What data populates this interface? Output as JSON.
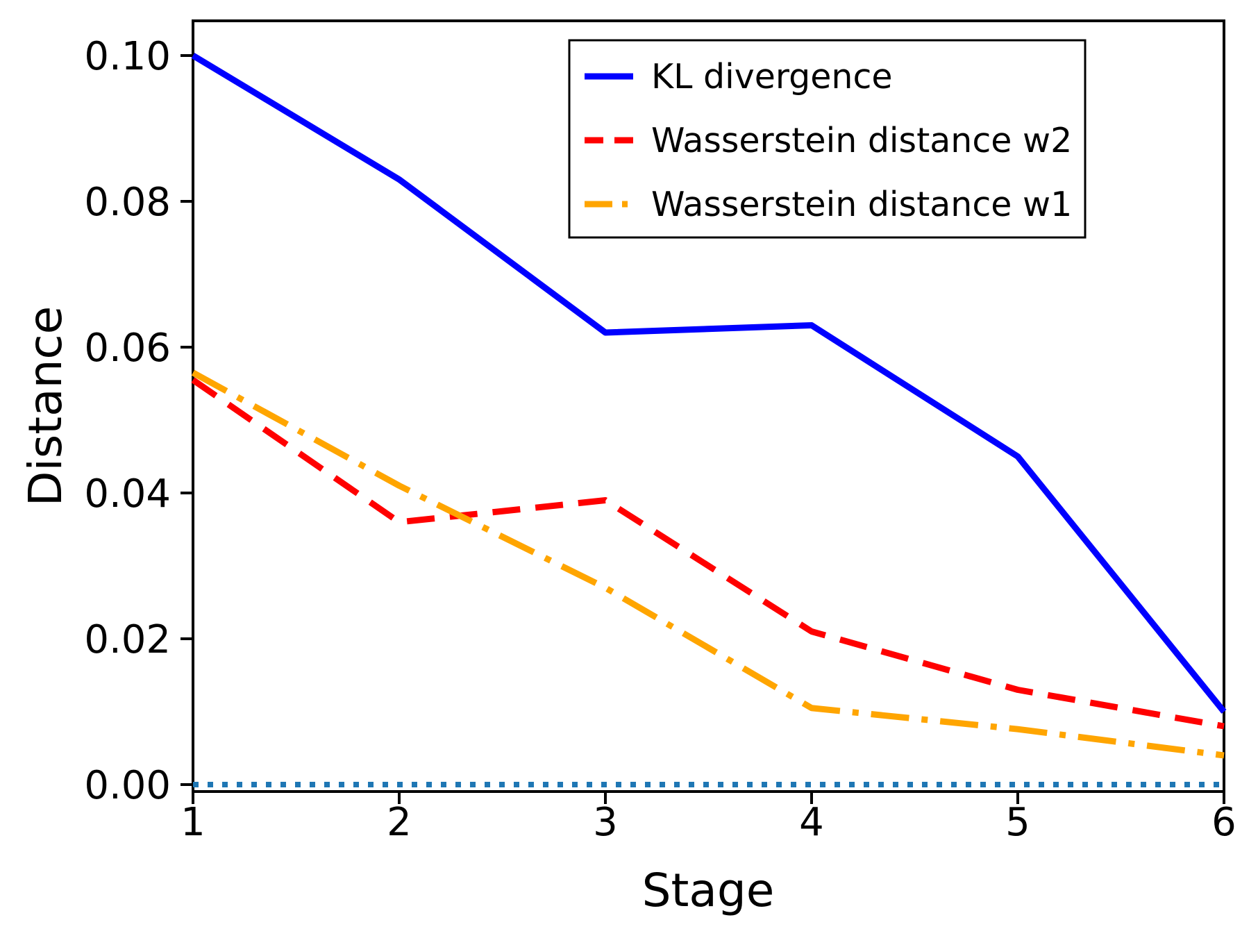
{
  "chart_data": {
    "type": "line",
    "title": "",
    "xlabel": "Stage",
    "ylabel": "Distance",
    "x": [
      1,
      2,
      3,
      4,
      5,
      6
    ],
    "series": [
      {
        "id": "kl-divergence",
        "name": "KL divergence",
        "color": "#0000ff",
        "style": "solid",
        "values": [
          0.1,
          0.083,
          0.062,
          0.063,
          0.045,
          0.01
        ]
      },
      {
        "id": "wasserstein-w2",
        "name": "Wasserstein distance w2",
        "color": "#ff0000",
        "style": "dashed",
        "values": [
          0.0555,
          0.036,
          0.039,
          0.021,
          0.013,
          0.008
        ]
      },
      {
        "id": "wasserstein-w1",
        "name": "Wasserstein distance w1",
        "color": "#ffa500",
        "style": "dashdot",
        "values": [
          0.0565,
          0.041,
          0.027,
          0.0105,
          0.0076,
          0.004
        ]
      }
    ],
    "reference_line": {
      "id": "zero-line",
      "y": 0.0,
      "color": "#1f77b4",
      "style": "dotted"
    },
    "xticks": {
      "values": [
        1,
        2,
        3,
        4,
        5,
        6
      ],
      "labels": [
        "1",
        "2",
        "3",
        "4",
        "5",
        "6"
      ]
    },
    "yticks": {
      "values": [
        0.0,
        0.02,
        0.04,
        0.06,
        0.08,
        0.1
      ],
      "labels": [
        "0.00",
        "0.02",
        "0.04",
        "0.06",
        "0.08",
        "0.10"
      ]
    },
    "xlim": [
      1,
      6
    ],
    "ylim": [
      -0.001,
      0.1048
    ],
    "grid": false,
    "legend": {
      "position": "upper right",
      "entries": [
        "KL divergence",
        "Wasserstein distance w2",
        "Wasserstein distance w1"
      ]
    }
  },
  "colors": {
    "axes": "#000000",
    "background": "#ffffff"
  }
}
